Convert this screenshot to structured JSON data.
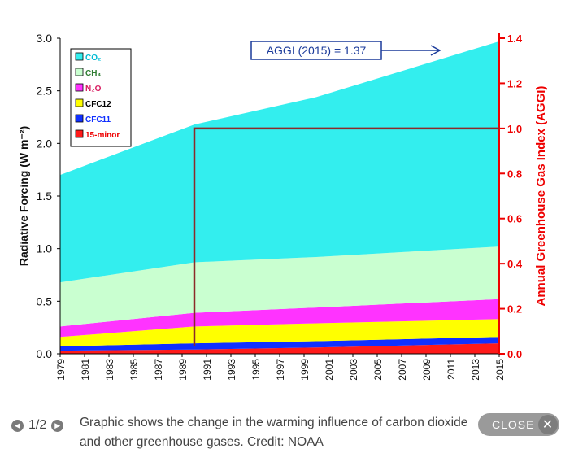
{
  "chart_data": {
    "type": "area",
    "stacked": true,
    "x": [
      1979,
      1990,
      2000,
      2015
    ],
    "xticks": [
      "1979",
      "1981",
      "1983",
      "1985",
      "1987",
      "1989",
      "1991",
      "1993",
      "1995",
      "1997",
      "1999",
      "2001",
      "2003",
      "2005",
      "2007",
      "2009",
      "2011",
      "2013",
      "2015"
    ],
    "series": [
      {
        "name": "15-minor",
        "color": "#ff1a1a",
        "values": [
          0.03,
          0.04,
          0.06,
          0.1
        ]
      },
      {
        "name": "CFC11",
        "color": "#1030ff",
        "values": [
          0.04,
          0.06,
          0.06,
          0.06
        ]
      },
      {
        "name": "CFC12",
        "color": "#ffff00",
        "values": [
          0.09,
          0.16,
          0.17,
          0.17
        ]
      },
      {
        "name": "N₂O",
        "color": "#ff33ff",
        "values": [
          0.1,
          0.13,
          0.15,
          0.19
        ]
      },
      {
        "name": "CH₄",
        "color": "#c9ffd0",
        "values": [
          0.42,
          0.48,
          0.48,
          0.5
        ]
      },
      {
        "name": "CO₂",
        "color": "#33eeee",
        "values": [
          1.02,
          1.31,
          1.52,
          1.95
        ]
      }
    ],
    "ylabel": "Radiative Forcing (W m⁻²)",
    "ylim": [
      0,
      3.0
    ],
    "yticks": [
      "0.0",
      "0.5",
      "1.0",
      "1.5",
      "2.0",
      "2.5",
      "3.0"
    ],
    "y2label": "Annual Greenhouse Gas Index (AGGI)",
    "y2lim": [
      0,
      1.4
    ],
    "y2ticks": [
      "0.0",
      "0.2",
      "0.4",
      "0.6",
      "0.8",
      "1.0",
      "1.2",
      "1.4"
    ],
    "aggi_reference_year": 1990,
    "aggi_reference_value": 1.0,
    "annotation": "AGGI (2015) = 1.37",
    "legend_order": [
      "CO₂",
      "CH₄",
      "N₂O",
      "CFC12",
      "CFC11",
      "15-minor"
    ],
    "legend_position": "top-left"
  },
  "gallery": {
    "counter": "1/2",
    "caption": "Graphic shows the change in the warming influence of carbon dioxide and other greenhouse gases. Credit: NOAA",
    "close_label": "CLOSE",
    "close_icon": "✕"
  }
}
